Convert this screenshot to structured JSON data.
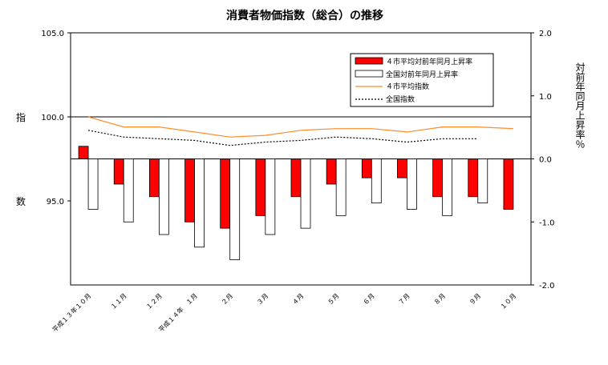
{
  "chart_data": {
    "type": "bar+line",
    "title": "消費者物価指数（総合）の推移",
    "left_axis": {
      "label_top": "指",
      "label_bottom": "数",
      "ylim": [
        90.0,
        105.0
      ],
      "tick_labels": [
        "105.0",
        "100.0",
        "95.0"
      ],
      "tick_values": [
        105.0,
        100.0,
        95.0
      ]
    },
    "right_axis": {
      "label": "対前年同月上昇率％",
      "ylim": [
        -2.0,
        2.0
      ],
      "tick_labels": [
        "2.0",
        "1.0",
        "0.0",
        "-1.0",
        "-2.0"
      ],
      "tick_values": [
        2.0,
        1.0,
        0.0,
        -1.0,
        -2.0
      ]
    },
    "categories": [
      "平成１３年１０月",
      "１１月",
      "１２月",
      "平成１４年　１月",
      "２月",
      "３月",
      "４月",
      "５月",
      "６月",
      "７月",
      "８月",
      "９月",
      "１０月"
    ],
    "series": [
      {
        "name": "４市平均対前年同月上昇率",
        "axis": "right",
        "kind": "bar",
        "color": "#ff0000",
        "values": [
          0.2,
          -0.4,
          -0.6,
          -1.0,
          -1.1,
          -0.9,
          -0.6,
          -0.4,
          -0.3,
          -0.3,
          -0.6,
          -0.6,
          -0.8
        ]
      },
      {
        "name": "全国対前年同月上昇率",
        "axis": "right",
        "kind": "bar",
        "color": "#ffffff",
        "values": [
          -0.8,
          -1.0,
          -1.2,
          -1.4,
          -1.6,
          -1.2,
          -1.1,
          -0.9,
          -0.7,
          -0.8,
          -0.9,
          -0.7,
          null
        ]
      },
      {
        "name": "４市平均指数",
        "axis": "left",
        "kind": "line",
        "color": "#ff8c28",
        "values": [
          100.0,
          99.4,
          99.4,
          99.1,
          98.8,
          98.9,
          99.2,
          99.3,
          99.3,
          99.1,
          99.4,
          99.4,
          99.3
        ]
      },
      {
        "name": "全国指数",
        "axis": "left",
        "kind": "dotted-line",
        "color": "#000000",
        "values": [
          99.2,
          98.8,
          98.7,
          98.6,
          98.3,
          98.5,
          98.6,
          98.8,
          98.7,
          98.5,
          98.7,
          98.7,
          null
        ]
      }
    ],
    "legend_position": "top-right"
  }
}
